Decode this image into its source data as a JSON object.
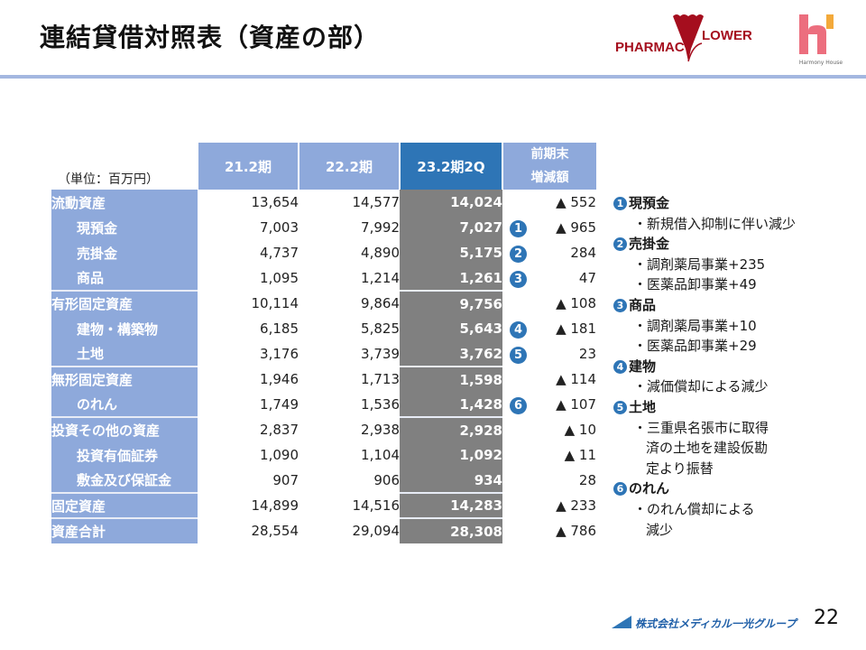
{
  "header": {
    "title": "連結貸借対照表（資産の部）",
    "logos": {
      "pharmacy": {
        "left": "PHARMAC",
        "right": "LOWER",
        "icon": "flower-icon",
        "color": "#a50e1e"
      },
      "harmony": {
        "caption": "Harmony House",
        "icon": "h-letter-icon",
        "colors": [
          "#ec6e7e",
          "#f3a93a"
        ]
      }
    },
    "rule_color": "#a4b7e0"
  },
  "table": {
    "unit": "（単位：百万円）",
    "columns": [
      "21.2期",
      "22.2期",
      "23.2期2Q",
      "前期末",
      "増減額"
    ],
    "colors": {
      "header": "#8ea9db",
      "current_header": "#2e75b6",
      "current_cells": "#808080"
    },
    "rows": [
      {
        "label": "流動資産",
        "sub": false,
        "v21": "13,654",
        "v22": "14,577",
        "v23": "14,024",
        "diff": "▲ 552",
        "badge": ""
      },
      {
        "label": "現預金",
        "sub": true,
        "v21": "7,003",
        "v22": "7,992",
        "v23": "7,027",
        "diff": "▲ 965",
        "badge": "1"
      },
      {
        "label": "売掛金",
        "sub": true,
        "v21": "4,737",
        "v22": "4,890",
        "v23": "5,175",
        "diff": "284",
        "badge": "2"
      },
      {
        "label": "商品",
        "sub": true,
        "v21": "1,095",
        "v22": "1,214",
        "v23": "1,261",
        "diff": "47",
        "badge": "3"
      },
      {
        "label": "有形固定資産",
        "sub": false,
        "v21": "10,114",
        "v22": "9,864",
        "v23": "9,756",
        "diff": "▲ 108",
        "badge": ""
      },
      {
        "label": "建物・構築物",
        "sub": true,
        "v21": "6,185",
        "v22": "5,825",
        "v23": "5,643",
        "diff": "▲ 181",
        "badge": "4"
      },
      {
        "label": "土地",
        "sub": true,
        "v21": "3,176",
        "v22": "3,739",
        "v23": "3,762",
        "diff": "23",
        "badge": "5"
      },
      {
        "label": "無形固定資産",
        "sub": false,
        "v21": "1,946",
        "v22": "1,713",
        "v23": "1,598",
        "diff": "▲ 114",
        "badge": ""
      },
      {
        "label": "のれん",
        "sub": true,
        "v21": "1,749",
        "v22": "1,536",
        "v23": "1,428",
        "diff": "▲ 107",
        "badge": "6"
      },
      {
        "label": "投資その他の資産",
        "sub": false,
        "v21": "2,837",
        "v22": "2,938",
        "v23": "2,928",
        "diff": "▲ 10",
        "badge": ""
      },
      {
        "label": "投資有価証券",
        "sub": true,
        "v21": "1,090",
        "v22": "1,104",
        "v23": "1,092",
        "diff": "▲ 11",
        "badge": ""
      },
      {
        "label": "敷金及び保証金",
        "sub": true,
        "v21": "907",
        "v22": "906",
        "v23": "934",
        "diff": "28",
        "badge": ""
      },
      {
        "label": "固定資産",
        "sub": false,
        "v21": "14,899",
        "v22": "14,516",
        "v23": "14,283",
        "diff": "▲ 233",
        "badge": ""
      },
      {
        "label": "資産合計",
        "sub": false,
        "v21": "28,554",
        "v22": "29,094",
        "v23": "28,308",
        "diff": "▲ 786",
        "badge": ""
      }
    ]
  },
  "notes": [
    {
      "num": "1",
      "title": "現預金",
      "items": [
        "・新規借入抑制に伴い減少"
      ]
    },
    {
      "num": "2",
      "title": "売掛金",
      "items": [
        "・調剤薬局事業+235",
        "・医薬品卸事業+49"
      ]
    },
    {
      "num": "3",
      "title": "商品",
      "items": [
        "・調剤薬局事業+10",
        "・医薬品卸事業+29"
      ]
    },
    {
      "num": "4",
      "title": "建物",
      "items": [
        "・減価償却による減少"
      ]
    },
    {
      "num": "5",
      "title": "土地",
      "items": [
        "・三重県名張市に取得",
        "済の土地を建設仮勘",
        "定より振替"
      ]
    },
    {
      "num": "6",
      "title": "のれん",
      "items": [
        "・のれん償却による",
        "減少"
      ]
    }
  ],
  "footer": {
    "company": "株式会社メディカル一光グループ",
    "page": "22"
  }
}
